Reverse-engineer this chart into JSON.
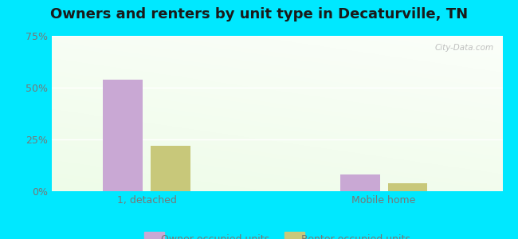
{
  "title": "Owners and renters by unit type in Decaturville, TN",
  "categories": [
    "1, detached",
    "Mobile home"
  ],
  "owner_values": [
    54.0,
    8.0
  ],
  "renter_values": [
    22.0,
    4.0
  ],
  "owner_color": "#c9a8d4",
  "renter_color": "#c8c87a",
  "ylim": [
    0,
    75
  ],
  "yticks": [
    0,
    25,
    50,
    75
  ],
  "yticklabels": [
    "0%",
    "25%",
    "50%",
    "75%"
  ],
  "background_outer": "#00e8ff",
  "watermark": "City-Data.com",
  "legend_owner": "Owner occupied units",
  "legend_renter": "Renter occupied units",
  "bar_width": 0.5,
  "group_positions": [
    1.5,
    4.5
  ],
  "xlim": [
    0.3,
    6.0
  ],
  "tick_color": "#777777",
  "grid_color": "#ffffff",
  "title_fontsize": 13,
  "axis_fontsize": 9
}
